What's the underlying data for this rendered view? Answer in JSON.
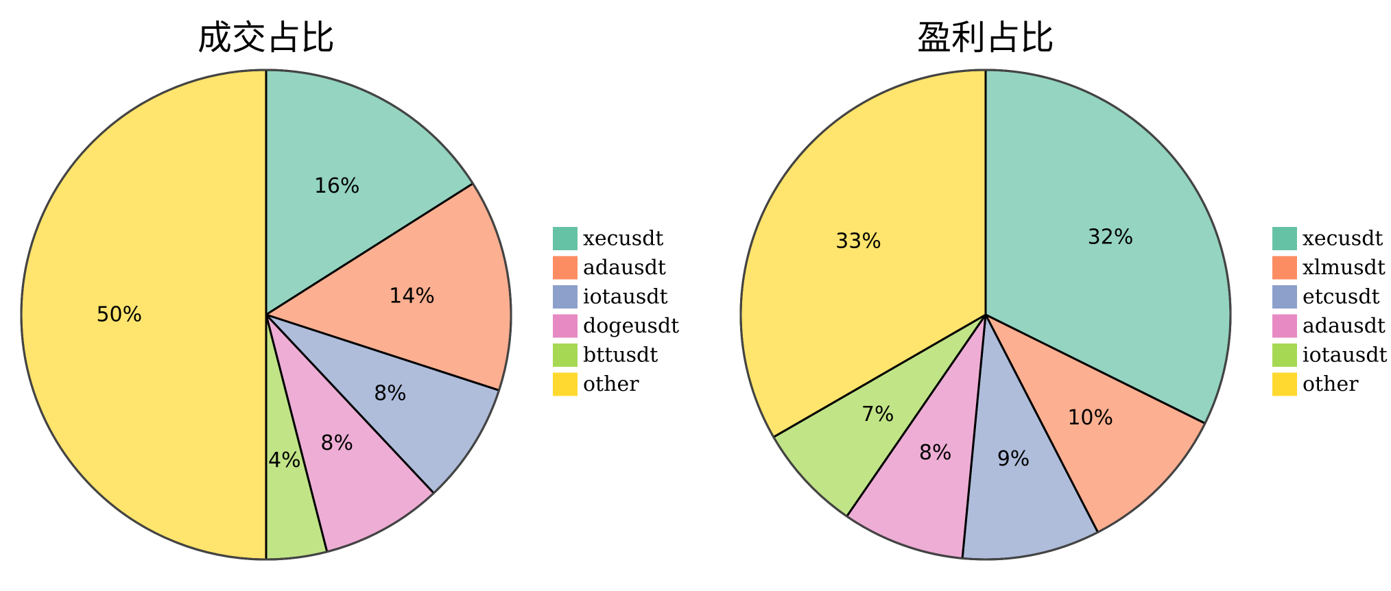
{
  "chart_data": [
    {
      "type": "pie",
      "title": "成交占比",
      "start_angle_deg": 90,
      "direction": "clockwise",
      "legend_position": "right",
      "slices": [
        {
          "label": "xecusdt",
          "value": 16,
          "display": "16%",
          "color": "#66c2a5"
        },
        {
          "label": "adausdt",
          "value": 14,
          "display": "14%",
          "color": "#fc8d62"
        },
        {
          "label": "iotausdt",
          "value": 8,
          "display": "8%",
          "color": "#8da0cb"
        },
        {
          "label": "dogeusdt",
          "value": 8,
          "display": "8%",
          "color": "#e78ac3"
        },
        {
          "label": "bttusdt",
          "value": 4,
          "display": "4%",
          "color": "#a6d854"
        },
        {
          "label": "other",
          "value": 50,
          "display": "50%",
          "color": "#ffd92f"
        }
      ]
    },
    {
      "type": "pie",
      "title": "盈利占比",
      "start_angle_deg": 90,
      "direction": "clockwise",
      "legend_position": "right",
      "slices": [
        {
          "label": "xecusdt",
          "value": 32,
          "display": "32%",
          "color": "#66c2a5"
        },
        {
          "label": "xlmusdt",
          "value": 10,
          "display": "10%",
          "color": "#fc8d62"
        },
        {
          "label": "etcusdt",
          "value": 9,
          "display": "9%",
          "color": "#8da0cb"
        },
        {
          "label": "adausdt",
          "value": 8,
          "display": "8%",
          "color": "#e78ac3"
        },
        {
          "label": "iotausdt",
          "value": 7,
          "display": "7%",
          "color": "#a6d854"
        },
        {
          "label": "other",
          "value": 33,
          "display": "33%",
          "color": "#ffd92f"
        }
      ]
    }
  ]
}
